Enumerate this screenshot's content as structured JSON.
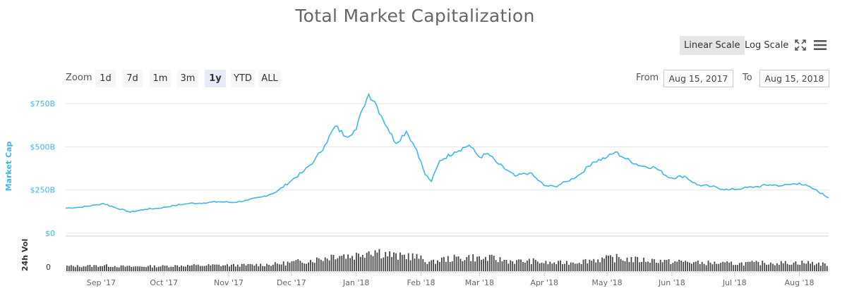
{
  "title": "Total Market Capitalization",
  "scale": {
    "linear_label": "Linear Scale",
    "log_label": "Log Scale",
    "active": "linear"
  },
  "icons": {
    "fullscreen": "fullscreen-icon",
    "menu": "hamburger-menu-icon"
  },
  "zoom": {
    "label": "Zoom",
    "options": [
      "1d",
      "7d",
      "1m",
      "3m",
      "1y",
      "YTD",
      "ALL"
    ],
    "active": "1y"
  },
  "range": {
    "from_label": "From",
    "from_value": "Aug 15, 2017",
    "to_label": "To",
    "to_value": "Aug 15, 2018"
  },
  "colors": {
    "line": "#41b6e6",
    "volume": "#444444",
    "grid": "#e6e6e6"
  },
  "chart_data": [
    {
      "type": "line",
      "ylabel": "Market Cap",
      "ylim": [
        0,
        820
      ],
      "y_ticks": [
        "$0",
        "$250B",
        "$500B",
        "$750B"
      ],
      "y_tick_values": [
        0,
        250,
        500,
        750
      ],
      "x_ticks": [
        "Sep '17",
        "Oct '17",
        "Nov '17",
        "Dec '17",
        "Jan '18",
        "Feb '18",
        "Mar '18",
        "Apr '18",
        "May '18",
        "Jun '18",
        "Jul '18",
        "Aug '18"
      ],
      "grid": true,
      "series": [
        {
          "x": [
            "2017-08-15",
            "2017-08-22",
            "2017-08-29",
            "2017-09-02",
            "2017-09-08",
            "2017-09-15",
            "2017-09-22",
            "2017-09-29",
            "2017-10-06",
            "2017-10-13",
            "2017-10-20",
            "2017-10-27",
            "2017-11-03",
            "2017-11-10",
            "2017-11-17",
            "2017-11-24",
            "2017-12-01",
            "2017-12-07",
            "2017-12-12",
            "2017-12-17",
            "2017-12-22",
            "2017-12-27",
            "2018-01-01",
            "2018-01-04",
            "2018-01-07",
            "2018-01-10",
            "2018-01-13",
            "2018-01-16",
            "2018-01-20",
            "2018-01-25",
            "2018-01-30",
            "2018-02-03",
            "2018-02-06",
            "2018-02-10",
            "2018-02-17",
            "2018-02-24",
            "2018-03-01",
            "2018-03-05",
            "2018-03-10",
            "2018-03-18",
            "2018-03-25",
            "2018-04-01",
            "2018-04-06",
            "2018-04-12",
            "2018-04-18",
            "2018-04-24",
            "2018-05-01",
            "2018-05-05",
            "2018-05-10",
            "2018-05-17",
            "2018-05-24",
            "2018-05-31",
            "2018-06-07",
            "2018-06-13",
            "2018-06-20",
            "2018-06-28",
            "2018-07-05",
            "2018-07-12",
            "2018-07-18",
            "2018-07-24",
            "2018-08-01",
            "2018-08-08",
            "2018-08-15"
          ],
          "y": [
            145,
            150,
            162,
            172,
            147,
            122,
            138,
            145,
            160,
            172,
            175,
            182,
            178,
            190,
            210,
            240,
            305,
            360,
            420,
            510,
            620,
            560,
            600,
            720,
            805,
            760,
            680,
            610,
            520,
            590,
            480,
            340,
            300,
            420,
            470,
            510,
            440,
            460,
            400,
            330,
            350,
            275,
            270,
            300,
            340,
            410,
            440,
            470,
            430,
            390,
            380,
            320,
            330,
            280,
            270,
            250,
            260,
            270,
            280,
            275,
            290,
            255,
            205
          ]
        }
      ]
    },
    {
      "type": "bar",
      "ylabel": "24h Vol",
      "y_ticks": [
        "0"
      ],
      "categories_from": "2017-08-15",
      "categories_to": "2018-08-15"
    }
  ]
}
